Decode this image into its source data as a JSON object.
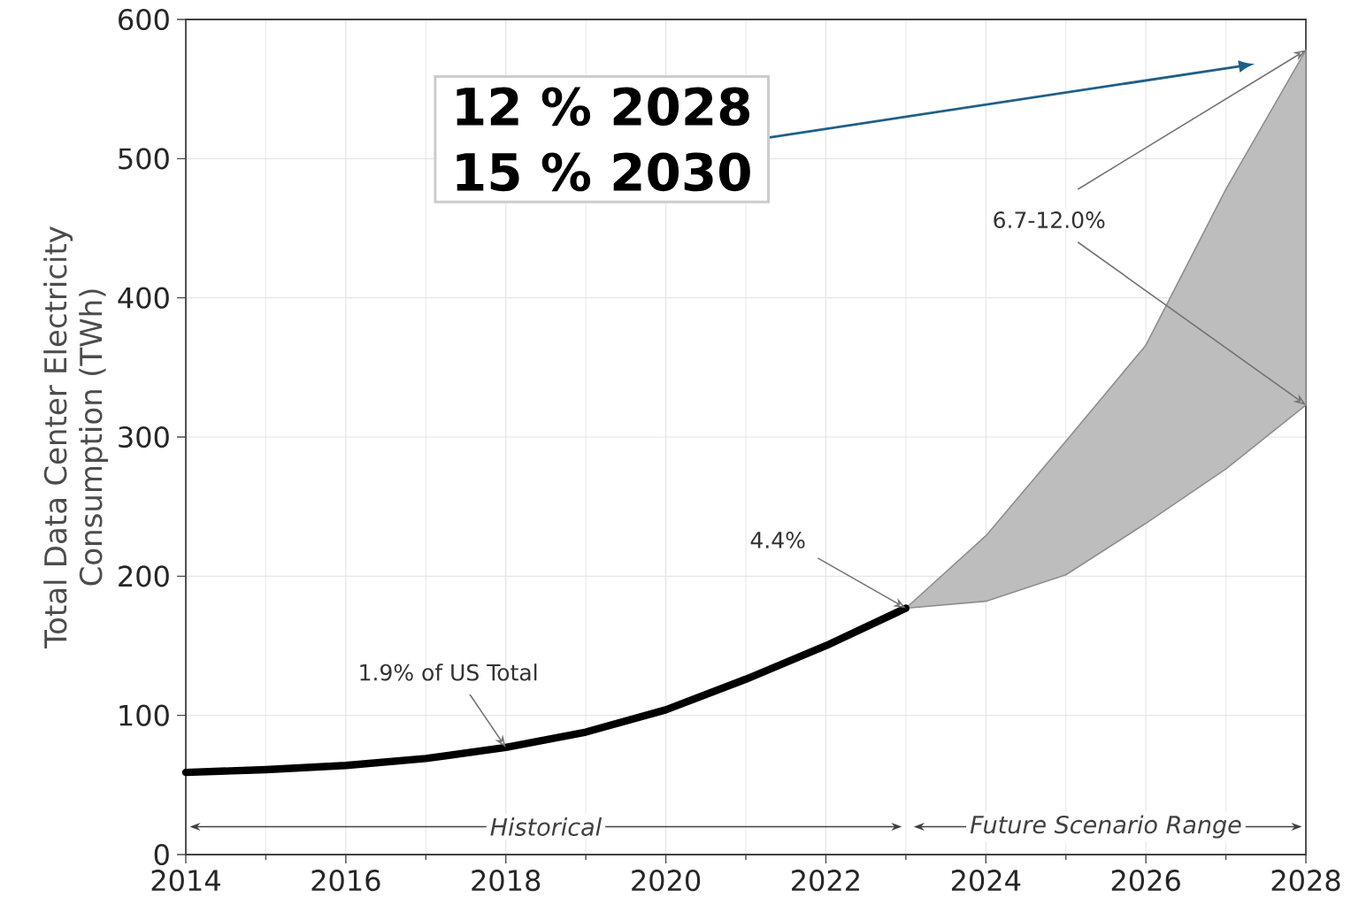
{
  "chart_data": {
    "type": "line",
    "ylabel": "Total Data Center Electricity Consumption (TWh)",
    "xlim": [
      2014,
      2028
    ],
    "ylim": [
      0,
      600
    ],
    "xticks": [
      2014,
      2016,
      2018,
      2020,
      2022,
      2024,
      2026,
      2028
    ],
    "yticks": [
      0,
      100,
      200,
      300,
      400,
      500,
      600
    ],
    "grid": true,
    "series": [
      {
        "color": "#000000",
        "x": [
          2014,
          2015,
          2016,
          2017,
          2018,
          2019,
          2020,
          2021,
          2022,
          2023,
          2024,
          2025,
          2026,
          2027,
          2028
        ],
        "values": [
          59,
          61,
          64,
          69,
          77,
          88,
          104,
          126,
          150,
          177,
          null,
          null,
          null,
          null,
          null
        ],
        "lower": [
          null,
          null,
          null,
          null,
          null,
          null,
          null,
          null,
          null,
          177,
          182,
          201,
          238,
          277,
          323
        ],
        "upper": [
          null,
          null,
          null,
          null,
          null,
          null,
          null,
          null,
          null,
          177,
          229,
          297,
          366,
          478,
          578
        ]
      }
    ],
    "annotations": [
      {
        "text": "1.9% of US Total",
        "x": 2018,
        "y": 77
      },
      {
        "text": "4.4%",
        "x": 2023,
        "y": 177
      },
      {
        "text": "6.7-12.0%",
        "x": 2028,
        "y": 578
      },
      "12 % 2028",
      "15 % 2030",
      "Historical",
      "Future Scenario Range"
    ]
  }
}
